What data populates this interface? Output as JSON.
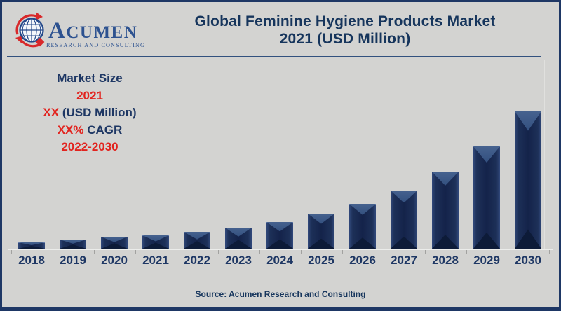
{
  "page": {
    "background": "#d3d3d1",
    "border_color": "#1e3765"
  },
  "logo": {
    "name": "ACUMEN",
    "tagline": "RESEARCH AND CONSULTING",
    "globe_icon": "globe-with-rotation-arrows",
    "text_color": "#2d5290",
    "accent_red": "#d8282a"
  },
  "header": {
    "title_line1": "Global Feminine Hygiene Products Market",
    "title_line2": "2021 (USD Million)"
  },
  "info_panel": {
    "line1": "Market Size",
    "line2": "2021",
    "line3_value": "XX",
    "line3_suffix": " (USD Million)",
    "line4_value": "XX%",
    "line4_suffix": " CAGR",
    "line5": "2022-2030",
    "navy": "#1e3764",
    "red": "#e2231e"
  },
  "chart_data": {
    "type": "bar",
    "title": "Global Feminine Hygiene Products Market 2021 (USD Million)",
    "categories": [
      "2018",
      "2019",
      "2020",
      "2021",
      "2022",
      "2023",
      "2024",
      "2025",
      "2026",
      "2027",
      "2028",
      "2029",
      "2030"
    ],
    "values": [
      9,
      13,
      17,
      19,
      24,
      30,
      38,
      50,
      64,
      83,
      110,
      146,
      196
    ],
    "value_note": "relative bar heights in px; numeric values not labeled on chart (shown as XX)",
    "bar_color": "#1b2d56",
    "xlabel": "",
    "ylabel": "",
    "ylim": [
      0,
      200
    ],
    "grid": "off",
    "legend": "none"
  },
  "footer": {
    "source": "Source: Acumen Research and Consulting"
  }
}
